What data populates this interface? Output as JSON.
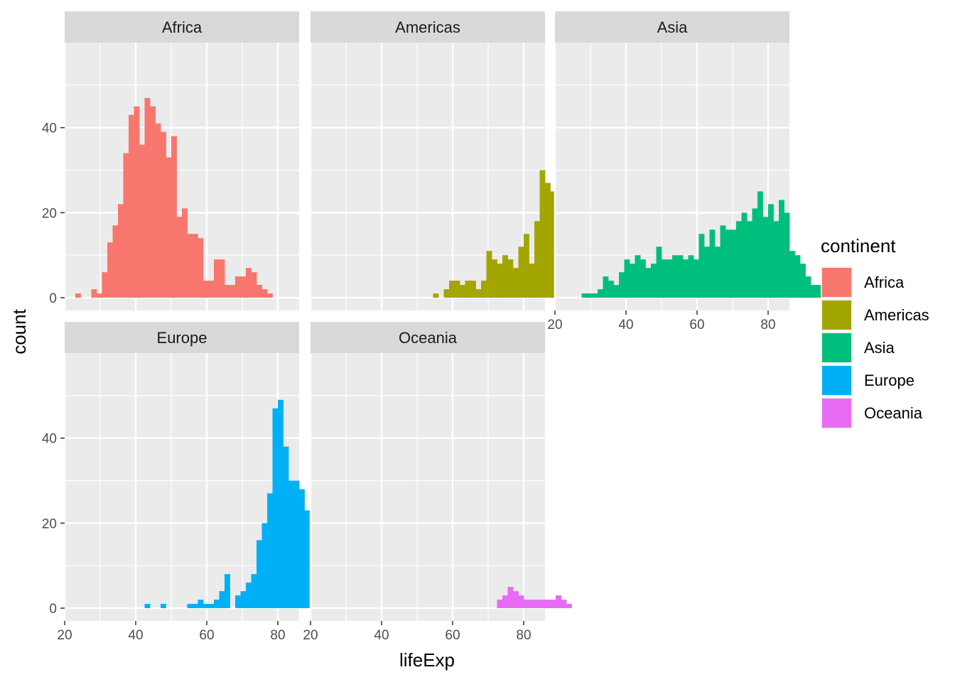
{
  "chart_data": {
    "type": "bar",
    "subtype": "faceted-histogram",
    "x": {
      "label": "lifeExp",
      "lim": [
        20,
        86
      ],
      "ticks": [
        20,
        40,
        60,
        80
      ]
    },
    "y": {
      "label": "count",
      "lim": [
        -3,
        60
      ],
      "ticks": [
        0,
        20,
        40
      ]
    },
    "bin_start": 23,
    "bin_width": 1.5,
    "grid": true,
    "legend": {
      "title": "continent",
      "position": "right"
    },
    "facets": [
      {
        "name": "Africa",
        "color": "#F8766D",
        "counts": [
          1,
          0,
          0,
          2,
          1,
          6,
          13,
          17,
          22,
          34,
          43,
          45,
          36,
          47,
          45,
          41,
          39,
          33,
          38,
          19,
          21,
          15,
          15,
          14,
          4,
          4,
          9,
          9,
          3,
          3,
          5,
          5,
          7,
          6,
          3,
          2,
          1
        ]
      },
      {
        "name": "Americas",
        "color": "#A3A500",
        "counts": [
          0,
          0,
          0,
          0,
          0,
          0,
          0,
          0,
          0,
          0,
          0,
          0,
          0,
          0,
          0,
          0,
          0,
          0,
          0,
          0,
          0,
          1,
          0,
          2,
          4,
          4,
          3,
          4,
          4,
          2,
          4,
          11,
          9,
          8,
          10,
          9,
          7,
          12,
          15,
          8,
          18,
          30,
          27,
          25,
          17,
          15,
          4,
          11,
          1,
          1
        ]
      },
      {
        "name": "Asia",
        "color": "#00BF7D",
        "counts": [
          0,
          0,
          0,
          1,
          1,
          1,
          2,
          5,
          4,
          3,
          6,
          9,
          8,
          10,
          9,
          7,
          8,
          12,
          9,
          9,
          10,
          10,
          9,
          10,
          9,
          15,
          12,
          16,
          12,
          17,
          16,
          16,
          18,
          20,
          18,
          21,
          25,
          19,
          22,
          18,
          23,
          20,
          11,
          10,
          8,
          5,
          3,
          3,
          2
        ]
      },
      {
        "name": "Europe",
        "color": "#00B0F6",
        "counts": [
          0,
          0,
          0,
          0,
          0,
          0,
          0,
          0,
          0,
          0,
          0,
          0,
          0,
          1,
          0,
          0,
          1,
          0,
          0,
          0,
          0,
          1,
          1,
          2,
          1,
          1,
          2,
          4,
          8,
          0,
          3,
          4,
          6,
          8,
          16,
          20,
          27,
          47,
          49,
          38,
          30,
          30,
          28,
          23,
          13,
          10,
          10
        ]
      },
      {
        "name": "Oceania",
        "color": "#E76BF3",
        "counts": [
          0,
          0,
          0,
          0,
          0,
          0,
          0,
          0,
          0,
          0,
          0,
          0,
          0,
          0,
          0,
          0,
          0,
          0,
          0,
          0,
          0,
          0,
          0,
          0,
          0,
          0,
          0,
          0,
          0,
          0,
          0,
          0,
          0,
          2,
          3,
          5,
          4,
          3,
          2,
          2,
          2,
          2,
          2,
          2,
          3,
          2,
          1
        ]
      }
    ]
  }
}
